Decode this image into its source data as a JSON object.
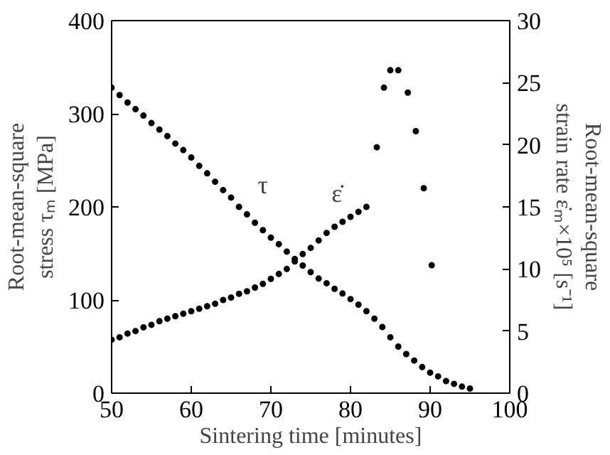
{
  "chart_data": {
    "type": "scatter",
    "xlabel": "Sintering time [minutes]",
    "ylabel": "Root-mean-square\nstress τₘ [MPa]",
    "y2label": "Root-mean-square\nstrain rate ε̇ₘ×10⁵ [s⁻¹]",
    "xlim": [
      50,
      100
    ],
    "xticks": [
      50,
      60,
      70,
      80,
      90,
      100
    ],
    "ylim": [
      0,
      400
    ],
    "yticks": [
      0,
      100,
      200,
      300,
      400
    ],
    "y2lim": [
      0,
      30
    ],
    "y2ticks": [
      0,
      5,
      10,
      15,
      20,
      25,
      30
    ],
    "grid": false,
    "marker": "circle",
    "series": [
      {
        "name": "τ",
        "color": "#000000",
        "x": [
          50,
          51,
          52,
          53,
          54,
          55,
          56,
          57,
          58,
          59,
          60,
          61,
          62,
          63,
          64,
          65,
          66,
          67,
          68,
          69,
          70,
          71,
          72,
          73,
          74,
          75,
          76,
          77,
          78,
          79,
          80,
          81,
          82,
          83,
          84,
          85,
          86,
          87,
          88,
          89,
          90,
          91,
          92,
          93,
          94,
          95
        ],
        "values": [
          328,
          320,
          312,
          305,
          298,
          290,
          283,
          276,
          268,
          261,
          253,
          244,
          236,
          227,
          218,
          210,
          200,
          192,
          183,
          175,
          167,
          160,
          152,
          144,
          137,
          130,
          123,
          118,
          112,
          107,
          101,
          95,
          88,
          80,
          71,
          60,
          50,
          42,
          35,
          28,
          22,
          18,
          13,
          10,
          7,
          5
        ]
      },
      {
        "name": "ε̇",
        "color": "#000000",
        "axis": "y2",
        "x": [
          50,
          51,
          52,
          53,
          54,
          55,
          56,
          57,
          58,
          59,
          60,
          61,
          62,
          63,
          64,
          65,
          66,
          67,
          68,
          69,
          70,
          71,
          72,
          73,
          74,
          75,
          76,
          77,
          78,
          79,
          80,
          81,
          82,
          83.3,
          84.2,
          85,
          86,
          87.2,
          88.2,
          89.2,
          90.2
        ],
        "values": [
          4.3,
          4.5,
          4.8,
          5.0,
          5.3,
          5.5,
          5.8,
          6.0,
          6.2,
          6.4,
          6.6,
          6.8,
          7.0,
          7.2,
          7.5,
          7.7,
          8.0,
          8.2,
          8.5,
          8.8,
          9.2,
          9.6,
          10.0,
          10.6,
          11.2,
          11.7,
          12.3,
          12.9,
          13.4,
          13.8,
          14.2,
          14.6,
          15.0,
          19.8,
          24.6,
          26,
          26,
          24.2,
          21.1,
          16.5,
          10.3
        ]
      }
    ]
  }
}
